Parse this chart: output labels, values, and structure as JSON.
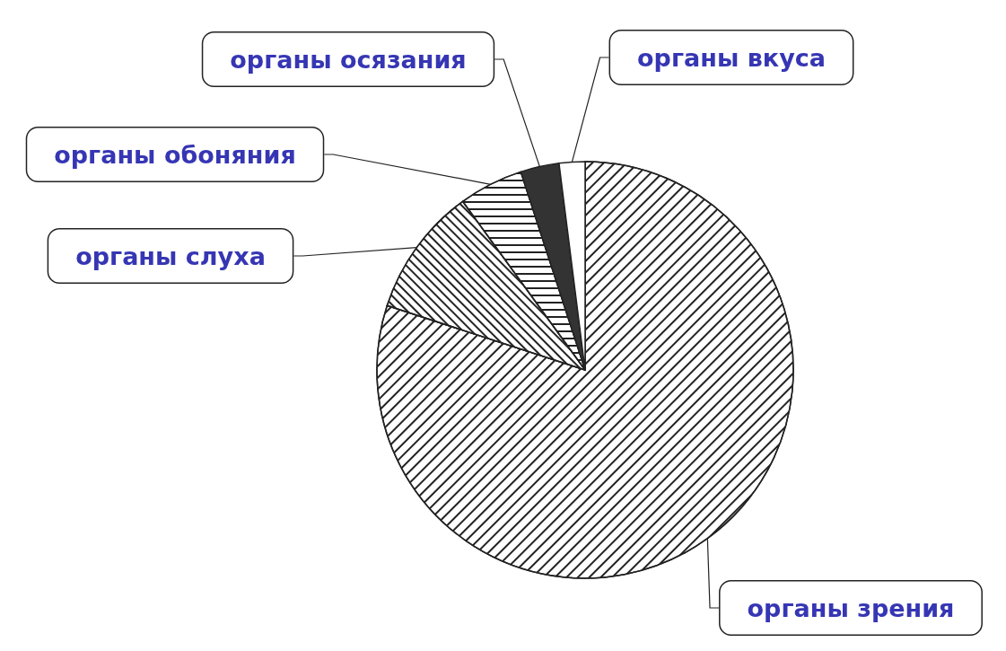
{
  "chart_data": {
    "type": "pie",
    "categories": [
      "органы зрения",
      "органы слуха",
      "органы обоняния",
      "органы осязания",
      "органы вкуса"
    ],
    "values": [
      80,
      10,
      5,
      3,
      2
    ],
    "colors": [
      "#ffffff",
      "#ffffff",
      "#ffffff",
      "#333333",
      "#ffffff"
    ],
    "legend": false
  }
}
